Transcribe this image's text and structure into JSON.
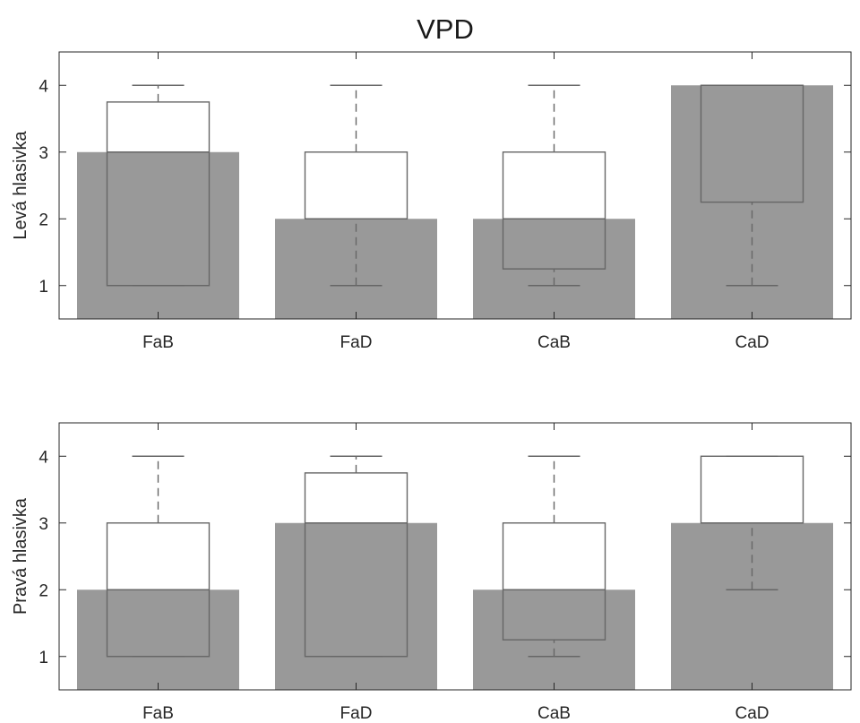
{
  "figure": {
    "title": "VPD"
  },
  "colors": {
    "bar": "#999999",
    "box": "#666666",
    "axis": "#262626",
    "background": "#ffffff"
  },
  "chart_data": [
    {
      "type": "bar",
      "categories": [
        "FaB",
        "FaD",
        "CaB",
        "CaD"
      ],
      "values": [
        3,
        2,
        2,
        4
      ],
      "ylabel": "Levá hlasivka",
      "ylim": [
        0.5,
        4.5
      ],
      "yticks": [
        1,
        2,
        3,
        4
      ],
      "grid": false,
      "boxplot": [
        {
          "min": 1,
          "q1": 1,
          "median": 3,
          "q3": 3.75,
          "max": 4
        },
        {
          "min": 1,
          "q1": 2,
          "median": 2,
          "q3": 3,
          "max": 4
        },
        {
          "min": 1,
          "q1": 1.25,
          "median": 2,
          "q3": 3,
          "max": 4
        },
        {
          "min": 1,
          "q1": 2.25,
          "median": 4,
          "q3": 4,
          "max": 4
        }
      ]
    },
    {
      "type": "bar",
      "categories": [
        "FaB",
        "FaD",
        "CaB",
        "CaD"
      ],
      "values": [
        2,
        3,
        2,
        3
      ],
      "ylabel": "Pravá hlasivka",
      "ylim": [
        0.5,
        4.5
      ],
      "yticks": [
        1,
        2,
        3,
        4
      ],
      "grid": false,
      "boxplot": [
        {
          "min": 1,
          "q1": 1,
          "median": 2,
          "q3": 3,
          "max": 4
        },
        {
          "min": 1,
          "q1": 1,
          "median": 3,
          "q3": 3.75,
          "max": 4
        },
        {
          "min": 1,
          "q1": 1.25,
          "median": 2,
          "q3": 3,
          "max": 4
        },
        {
          "min": 2,
          "q1": 3,
          "median": 3,
          "q3": 4,
          "max": 4
        }
      ]
    }
  ]
}
